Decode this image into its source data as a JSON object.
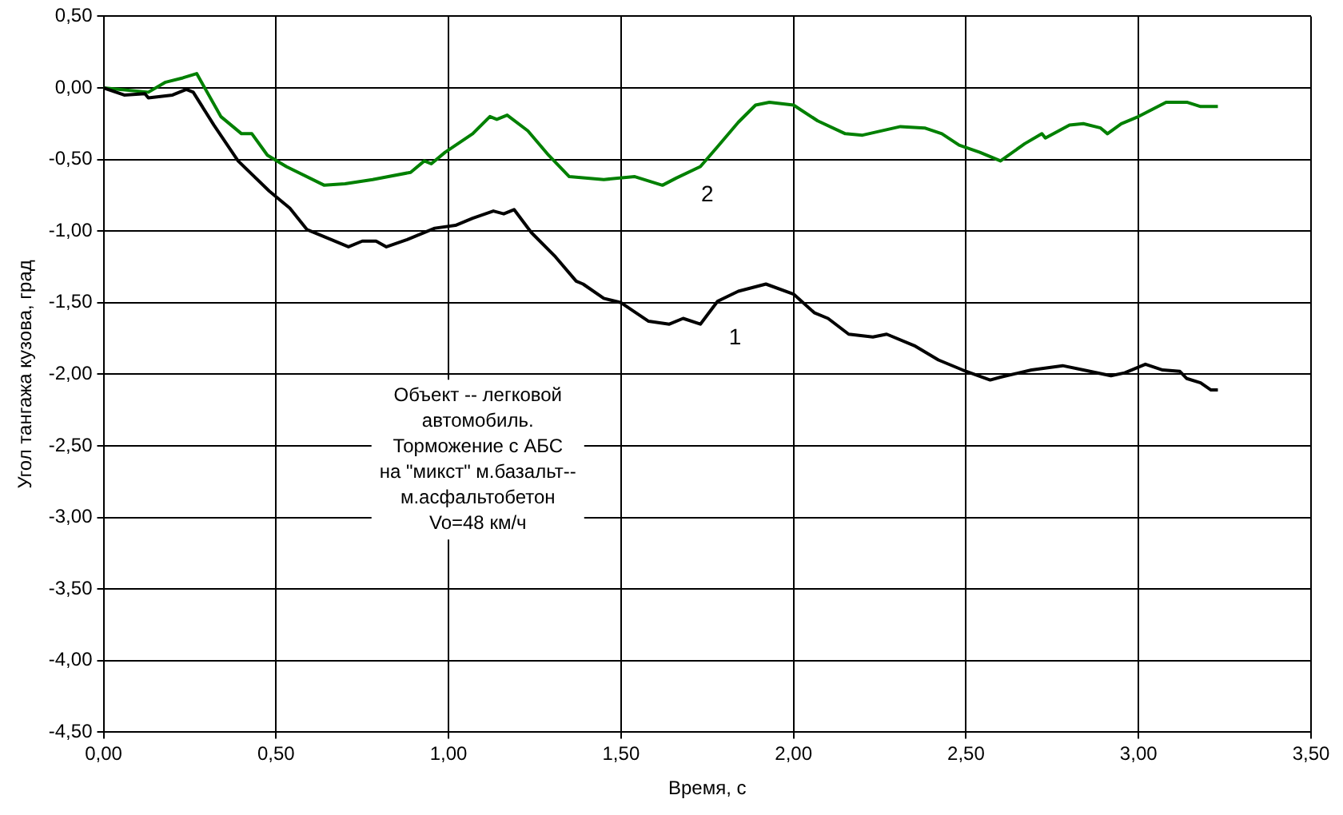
{
  "chart_data": {
    "type": "line",
    "xlabel": "Время, с",
    "ylabel": "Угол тангажа кузова, град",
    "xlim": [
      0,
      3.5
    ],
    "ylim": [
      -4.5,
      0.5
    ],
    "xticks": [
      {
        "value": 0,
        "label": "0,00"
      },
      {
        "value": 0.5,
        "label": "0,50"
      },
      {
        "value": 1,
        "label": "1,00"
      },
      {
        "value": 1.5,
        "label": "1,50"
      },
      {
        "value": 2,
        "label": "2,00"
      },
      {
        "value": 2.5,
        "label": "2,50"
      },
      {
        "value": 3,
        "label": "3,00"
      },
      {
        "value": 3.5,
        "label": "3,50"
      }
    ],
    "yticks": [
      {
        "value": 0.5,
        "label": "0,50"
      },
      {
        "value": 0,
        "label": "0,00"
      },
      {
        "value": -0.5,
        "label": "-0,50"
      },
      {
        "value": -1,
        "label": "-1,00"
      },
      {
        "value": -1.5,
        "label": "-1,50"
      },
      {
        "value": -2,
        "label": "-2,00"
      },
      {
        "value": -2.5,
        "label": "-2,50"
      },
      {
        "value": -3,
        "label": "-3,00"
      },
      {
        "value": -3.5,
        "label": "-3,50"
      },
      {
        "value": -4,
        "label": "-4,00"
      },
      {
        "value": -4.5,
        "label": "-4,50"
      }
    ],
    "grid": true,
    "legend": false,
    "marker": "none",
    "line_style": "solid",
    "series": [
      {
        "color": "#000000",
        "x": [
          0,
          0.06,
          0.12,
          0.13,
          0.2,
          0.24,
          0.26,
          0.32,
          0.39,
          0.48,
          0.54,
          0.59,
          0.66,
          0.71,
          0.75,
          0.79,
          0.82,
          0.88,
          0.96,
          1.02,
          1.07,
          1.13,
          1.16,
          1.19,
          1.24,
          1.31,
          1.37,
          1.39,
          1.45,
          1.5,
          1.58,
          1.64,
          1.68,
          1.73,
          1.78,
          1.84,
          1.92,
          2.0,
          2.06,
          2.1,
          2.16,
          2.23,
          2.27,
          2.35,
          2.42,
          2.49,
          2.57,
          2.6,
          2.69,
          2.78,
          2.84,
          2.92,
          2.96,
          3.02,
          3.07,
          3.12,
          3.14,
          3.18,
          3.21,
          3.23
        ],
        "values": [
          0,
          -0.05,
          -0.04,
          -0.07,
          -0.05,
          -0.01,
          -0.03,
          -0.26,
          -0.51,
          -0.72,
          -0.84,
          -0.99,
          -1.06,
          -1.11,
          -1.07,
          -1.07,
          -1.11,
          -1.06,
          -0.98,
          -0.96,
          -0.91,
          -0.86,
          -0.88,
          -0.85,
          -1.01,
          -1.18,
          -1.35,
          -1.37,
          -1.47,
          -1.5,
          -1.63,
          -1.65,
          -1.61,
          -1.65,
          -1.49,
          -1.42,
          -1.37,
          -1.44,
          -1.57,
          -1.61,
          -1.72,
          -1.74,
          -1.72,
          -1.8,
          -1.9,
          -1.97,
          -2.04,
          -2.02,
          -1.97,
          -1.94,
          -1.97,
          -2.01,
          -1.99,
          -1.93,
          -1.97,
          -1.98,
          -2.03,
          -2.06,
          -2.11,
          -2.11
        ]
      },
      {
        "color": "#008000",
        "x": [
          0,
          0.13,
          0.18,
          0.23,
          0.27,
          0.34,
          0.4,
          0.43,
          0.475,
          0.53,
          0.64,
          0.7,
          0.78,
          0.89,
          0.93,
          0.95,
          0.99,
          1.07,
          1.12,
          1.14,
          1.17,
          1.23,
          1.29,
          1.35,
          1.45,
          1.54,
          1.62,
          1.66,
          1.73,
          1.78,
          1.84,
          1.89,
          1.93,
          2.0,
          2.07,
          2.15,
          2.2,
          2.31,
          2.38,
          2.43,
          2.48,
          2.54,
          2.6,
          2.67,
          2.72,
          2.73,
          2.8,
          2.84,
          2.89,
          2.91,
          2.95,
          3.0,
          3.08,
          3.14,
          3.18,
          3.23
        ],
        "values": [
          0,
          -0.03,
          0.04,
          0.07,
          0.1,
          -0.2,
          -0.32,
          -0.32,
          -0.47,
          -0.55,
          -0.68,
          -0.67,
          -0.64,
          -0.59,
          -0.51,
          -0.53,
          -0.45,
          -0.32,
          -0.2,
          -0.22,
          -0.19,
          -0.3,
          -0.47,
          -0.62,
          -0.64,
          -0.62,
          -0.68,
          -0.63,
          -0.55,
          -0.41,
          -0.24,
          -0.12,
          -0.1,
          -0.12,
          -0.23,
          -0.32,
          -0.33,
          -0.27,
          -0.28,
          -0.32,
          -0.4,
          -0.45,
          -0.51,
          -0.39,
          -0.32,
          -0.35,
          -0.26,
          -0.25,
          -0.28,
          -0.32,
          -0.25,
          -0.2,
          -0.1,
          -0.1,
          -0.13,
          -0.13
        ]
      }
    ],
    "annotations": [
      "1",
      "2",
      "Объект -- легковой\nавтомобиль.\nТорможение с АБС\nна \"микст\" м.базальт--\nм.асфальтобетон\nVo=48 км/ч"
    ]
  }
}
